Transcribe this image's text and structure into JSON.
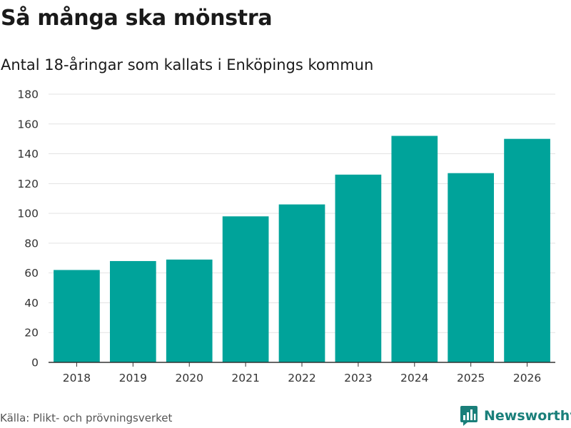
{
  "header": {
    "title": "Så många ska mönstra",
    "subtitle": "Antal 18-åringar som kallats i Enköpings kommun"
  },
  "footer": {
    "source": "Källa: Plikt- och prövningsverket",
    "brand": "Newsworthy",
    "brand_icon": "newsworthy-logo-icon"
  },
  "colors": {
    "bar": "#00a39a",
    "grid": "#e3e3e3",
    "axis": "#333333",
    "brand": "#1a7f7a"
  },
  "chart_data": {
    "type": "bar",
    "title": "Så många ska mönstra",
    "subtitle": "Antal 18-åringar som kallats i Enköpings kommun",
    "xlabel": "",
    "ylabel": "",
    "categories": [
      "2018",
      "2019",
      "2020",
      "2021",
      "2022",
      "2023",
      "2024",
      "2025",
      "2026"
    ],
    "values": [
      62,
      68,
      69,
      98,
      106,
      126,
      152,
      127,
      150
    ],
    "ylim": [
      0,
      180
    ],
    "yticks": [
      0,
      20,
      40,
      60,
      80,
      100,
      120,
      140,
      160,
      180
    ],
    "grid": true
  }
}
